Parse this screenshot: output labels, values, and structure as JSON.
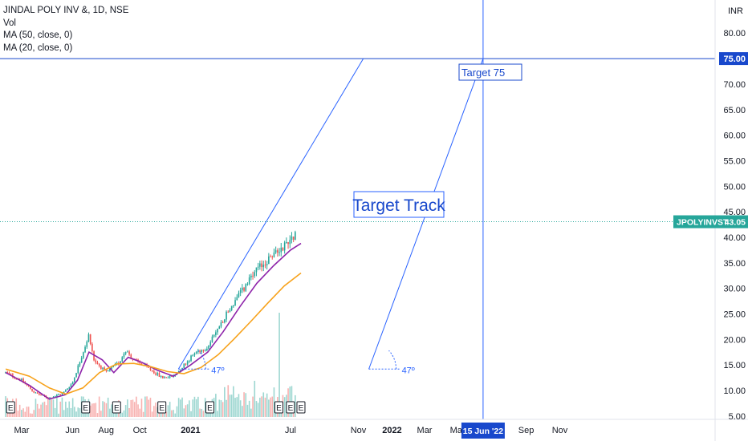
{
  "legend": {
    "symbol_line": "JINDAL POLY INV &, 1D, NSE",
    "volume_label": "Vol",
    "ma50_label": "MA (50, close, 0)",
    "ma20_label": "MA (20, close, 0)"
  },
  "currency_badge": "INR",
  "colors": {
    "up": "#26a69a",
    "down": "#ef5350",
    "ma20": "#8e24aa",
    "ma50": "#f7a21b",
    "drawing": "#2962ff",
    "price_badge": "#26a69a"
  },
  "price_badge": {
    "symbol": "JPOLYINVST",
    "value": "43.05"
  },
  "target_badge": {
    "value": "75.00"
  },
  "date_badge": {
    "value": "15 Jun '22"
  },
  "annotations": {
    "target_track": "Target Track",
    "target_75": "Target 75",
    "angle_1": "47º",
    "angle_2": "47º"
  },
  "earnings_marker": "E",
  "chart_data": {
    "type": "candlestick",
    "interval": "1D",
    "y_ticks": [
      "5.00",
      "10.00",
      "15.00",
      "20.00",
      "25.00",
      "30.00",
      "35.00",
      "40.00",
      "45.00",
      "50.00",
      "55.00",
      "60.00",
      "65.00",
      "70.00",
      "75.00",
      "80.00"
    ],
    "ylim": [
      5,
      85
    ],
    "x_ticks": [
      {
        "label": "Mar",
        "date": "2020-03-01",
        "bold": false
      },
      {
        "label": "Jun",
        "date": "2020-06-01",
        "bold": false
      },
      {
        "label": "Aug",
        "date": "2020-08-01",
        "bold": false
      },
      {
        "label": "Oct",
        "date": "2020-10-01",
        "bold": false
      },
      {
        "label": "2021",
        "date": "2021-01-01",
        "bold": true
      },
      {
        "label": "Jul",
        "date": "2021-07-01",
        "bold": false
      },
      {
        "label": "Nov",
        "date": "2021-11-01",
        "bold": false
      },
      {
        "label": "2022",
        "date": "2022-01-01",
        "bold": true
      },
      {
        "label": "Mar",
        "date": "2022-03-01",
        "bold": false
      },
      {
        "label": "May",
        "date": "2022-05-01",
        "bold": false
      },
      {
        "label": "Sep",
        "date": "2022-09-01",
        "bold": false
      },
      {
        "label": "Nov",
        "date": "2022-11-01",
        "bold": false
      }
    ],
    "last_price": 43.05,
    "target_price": 75.0,
    "target_date": "2022-06-15",
    "earnings_dates": [
      "2020-02-10",
      "2020-06-25",
      "2020-08-20",
      "2020-11-10",
      "2021-02-05",
      "2021-06-10",
      "2021-07-01",
      "2021-07-20"
    ],
    "price_path": [
      [
        "2020-02-01",
        13.5
      ],
      [
        "2020-03-01",
        12.0
      ],
      [
        "2020-03-25",
        9.5
      ],
      [
        "2020-04-20",
        8.5
      ],
      [
        "2020-05-15",
        9.5
      ],
      [
        "2020-06-01",
        11.5
      ],
      [
        "2020-06-20",
        17.5
      ],
      [
        "2020-07-01",
        21.0
      ],
      [
        "2020-07-10",
        16.0
      ],
      [
        "2020-08-01",
        13.5
      ],
      [
        "2020-08-25",
        15.5
      ],
      [
        "2020-09-05",
        18.0
      ],
      [
        "2020-09-20",
        16.0
      ],
      [
        "2020-10-15",
        14.5
      ],
      [
        "2020-11-10",
        12.5
      ],
      [
        "2020-12-01",
        12.8
      ],
      [
        "2020-12-20",
        15.0
      ],
      [
        "2021-01-10",
        17.5
      ],
      [
        "2021-02-01",
        18.5
      ],
      [
        "2021-03-01",
        24.0
      ],
      [
        "2021-04-01",
        29.0
      ],
      [
        "2021-05-01",
        33.5
      ],
      [
        "2021-05-20",
        35.5
      ],
      [
        "2021-06-10",
        37.5
      ],
      [
        "2021-06-25",
        39.0
      ],
      [
        "2021-07-10",
        41.0
      ]
    ],
    "series": [
      {
        "name": "MA (20, close, 0)",
        "color": "#8e24aa",
        "points": [
          [
            "2020-02-01",
            13.5
          ],
          [
            "2020-03-15",
            11.0
          ],
          [
            "2020-04-20",
            8.3
          ],
          [
            "2020-05-20",
            9.2
          ],
          [
            "2020-06-10",
            12.0
          ],
          [
            "2020-07-01",
            17.5
          ],
          [
            "2020-07-25",
            16.0
          ],
          [
            "2020-08-15",
            13.5
          ],
          [
            "2020-09-10",
            16.5
          ],
          [
            "2020-10-05",
            15.5
          ],
          [
            "2020-11-01",
            14.0
          ],
          [
            "2020-12-01",
            12.8
          ],
          [
            "2021-01-01",
            15.0
          ],
          [
            "2021-02-01",
            17.5
          ],
          [
            "2021-03-01",
            21.5
          ],
          [
            "2021-04-01",
            26.5
          ],
          [
            "2021-05-01",
            31.0
          ],
          [
            "2021-06-01",
            34.5
          ],
          [
            "2021-07-01",
            37.5
          ],
          [
            "2021-07-20",
            38.8
          ]
        ]
      },
      {
        "name": "MA (50, close, 0)",
        "color": "#f7a21b",
        "points": [
          [
            "2020-02-01",
            14.2
          ],
          [
            "2020-03-15",
            12.8
          ],
          [
            "2020-04-20",
            10.5
          ],
          [
            "2020-05-20",
            9.3
          ],
          [
            "2020-06-20",
            10.5
          ],
          [
            "2020-07-20",
            13.5
          ],
          [
            "2020-08-20",
            15.2
          ],
          [
            "2020-09-20",
            15.3
          ],
          [
            "2020-10-20",
            14.7
          ],
          [
            "2020-11-20",
            13.7
          ],
          [
            "2020-12-20",
            13.3
          ],
          [
            "2021-01-20",
            14.5
          ],
          [
            "2021-02-20",
            17.0
          ],
          [
            "2021-03-20",
            20.0
          ],
          [
            "2021-04-20",
            23.5
          ],
          [
            "2021-05-20",
            27.0
          ],
          [
            "2021-06-20",
            30.5
          ],
          [
            "2021-07-20",
            33.0
          ]
        ]
      }
    ],
    "volume_spike_date": "2021-06-10"
  }
}
